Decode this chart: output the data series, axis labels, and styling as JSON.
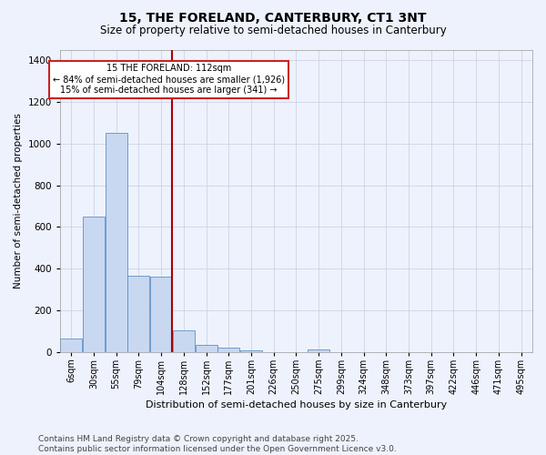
{
  "title1": "15, THE FORELAND, CANTERBURY, CT1 3NT",
  "title2": "Size of property relative to semi-detached houses in Canterbury",
  "xlabel": "Distribution of semi-detached houses by size in Canterbury",
  "ylabel": "Number of semi-detached properties",
  "footnote1": "Contains HM Land Registry data © Crown copyright and database right 2025.",
  "footnote2": "Contains public sector information licensed under the Open Government Licence v3.0.",
  "annotation_title": "15 THE FORELAND: 112sqm",
  "annotation_line1": "← 84% of semi-detached houses are smaller (1,926)",
  "annotation_line2": "15% of semi-detached houses are larger (341) →",
  "bar_color": "#c8d8f0",
  "bar_edge_color": "#6090c8",
  "ref_line_color": "#aa0000",
  "bg_color": "#eef2fc",
  "categories": [
    "6sqm",
    "30sqm",
    "55sqm",
    "79sqm",
    "104sqm",
    "128sqm",
    "152sqm",
    "177sqm",
    "201sqm",
    "226sqm",
    "250sqm",
    "275sqm",
    "299sqm",
    "324sqm",
    "348sqm",
    "373sqm",
    "397sqm",
    "422sqm",
    "446sqm",
    "471sqm",
    "495sqm"
  ],
  "values": [
    65,
    650,
    1050,
    365,
    360,
    105,
    35,
    18,
    5,
    0,
    0,
    10,
    0,
    0,
    0,
    0,
    0,
    0,
    0,
    0,
    0
  ],
  "ref_bin_index": 4,
  "ylim": [
    0,
    1450
  ],
  "yticks": [
    0,
    200,
    400,
    600,
    800,
    1000,
    1200,
    1400
  ],
  "grid_color": "#c8cce0",
  "annotation_box_facecolor": "#ffffff",
  "annotation_box_edgecolor": "#cc2222",
  "title1_fontsize": 10,
  "title2_fontsize": 8.5,
  "xlabel_fontsize": 8,
  "ylabel_fontsize": 7.5,
  "tick_fontsize": 7,
  "footnote_fontsize": 6.5
}
